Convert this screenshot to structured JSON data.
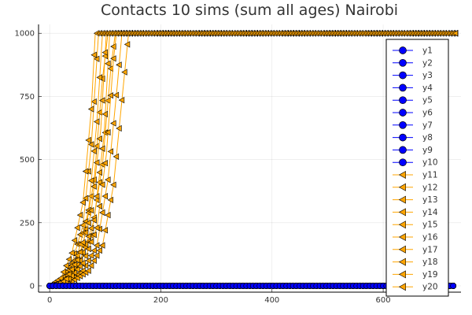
{
  "chart_data": {
    "type": "line",
    "title": "Contacts 10 sims (sum all ages) Nairobi",
    "xlabel": "",
    "ylabel": "",
    "xlim": [
      -20,
      740
    ],
    "ylim": [
      -25,
      1035
    ],
    "x_ticks": [
      "0",
      "200",
      "400",
      "600"
    ],
    "y_ticks": [
      "0",
      "250",
      "500",
      "750",
      "1000"
    ],
    "grid": true,
    "legend_position": "right",
    "series_colors": {
      "circle_series": "#0000ff",
      "triangle_series": "#ffa500"
    },
    "series": [
      {
        "name": "y1",
        "marker": "circle",
        "description": "flat at 0",
        "values": [
          [
            0,
            0
          ],
          [
            730,
            0
          ]
        ]
      },
      {
        "name": "y2",
        "marker": "circle",
        "values": [
          [
            0,
            0
          ],
          [
            730,
            0
          ]
        ]
      },
      {
        "name": "y3",
        "marker": "circle",
        "values": [
          [
            0,
            0
          ],
          [
            730,
            0
          ]
        ]
      },
      {
        "name": "y4",
        "marker": "circle",
        "values": [
          [
            0,
            0
          ],
          [
            730,
            0
          ]
        ]
      },
      {
        "name": "y5",
        "marker": "circle",
        "values": [
          [
            0,
            0
          ],
          [
            730,
            0
          ]
        ]
      },
      {
        "name": "y6",
        "marker": "circle",
        "values": [
          [
            0,
            0
          ],
          [
            730,
            0
          ]
        ]
      },
      {
        "name": "y7",
        "marker": "circle",
        "values": [
          [
            0,
            0
          ],
          [
            730,
            0
          ]
        ]
      },
      {
        "name": "y8",
        "marker": "circle",
        "values": [
          [
            0,
            0
          ],
          [
            730,
            0
          ]
        ]
      },
      {
        "name": "y9",
        "marker": "circle",
        "values": [
          [
            0,
            0
          ],
          [
            730,
            0
          ]
        ]
      },
      {
        "name": "y10",
        "marker": "circle",
        "values": [
          [
            0,
            0
          ],
          [
            730,
            0
          ]
        ]
      },
      {
        "name": "y11",
        "marker": "triangle-left",
        "values": [
          [
            0,
            0
          ],
          [
            20,
            10
          ],
          [
            40,
            60
          ],
          [
            60,
            160
          ],
          [
            80,
            420
          ],
          [
            95,
            820
          ],
          [
            105,
            1000
          ],
          [
            730,
            1000
          ]
        ]
      },
      {
        "name": "y12",
        "marker": "triangle-left",
        "values": [
          [
            0,
            0
          ],
          [
            20,
            20
          ],
          [
            40,
            90
          ],
          [
            60,
            240
          ],
          [
            75,
            560
          ],
          [
            88,
            1000
          ],
          [
            730,
            1000
          ]
        ]
      },
      {
        "name": "y13",
        "marker": "triangle-left",
        "values": [
          [
            0,
            0
          ],
          [
            25,
            15
          ],
          [
            50,
            80
          ],
          [
            75,
            200
          ],
          [
            95,
            480
          ],
          [
            110,
            860
          ],
          [
            118,
            1000
          ],
          [
            730,
            1000
          ]
        ]
      },
      {
        "name": "y14",
        "marker": "triangle-left",
        "values": [
          [
            0,
            0
          ],
          [
            25,
            25
          ],
          [
            50,
            120
          ],
          [
            70,
            300
          ],
          [
            85,
            650
          ],
          [
            95,
            1000
          ],
          [
            730,
            1000
          ]
        ]
      },
      {
        "name": "y15",
        "marker": "triangle-left",
        "values": [
          [
            0,
            0
          ],
          [
            30,
            10
          ],
          [
            60,
            60
          ],
          [
            85,
            160
          ],
          [
            105,
            420
          ],
          [
            122,
            800
          ],
          [
            130,
            1000
          ],
          [
            730,
            1000
          ]
        ]
      },
      {
        "name": "y16",
        "marker": "triangle-left",
        "values": [
          [
            0,
            0
          ],
          [
            30,
            20
          ],
          [
            55,
            100
          ],
          [
            80,
            260
          ],
          [
            98,
            600
          ],
          [
            108,
            1000
          ],
          [
            730,
            1000
          ]
        ]
      },
      {
        "name": "y17",
        "marker": "triangle-left",
        "values": [
          [
            0,
            0
          ],
          [
            35,
            10
          ],
          [
            70,
            60
          ],
          [
            95,
            160
          ],
          [
            115,
            400
          ],
          [
            132,
            780
          ],
          [
            142,
            1000
          ],
          [
            730,
            1000
          ]
        ]
      },
      {
        "name": "y18",
        "marker": "triangle-left",
        "values": [
          [
            0,
            0
          ],
          [
            20,
            30
          ],
          [
            40,
            130
          ],
          [
            60,
            330
          ],
          [
            75,
            700
          ],
          [
            82,
            1000
          ],
          [
            730,
            1000
          ]
        ]
      },
      {
        "name": "y19",
        "marker": "triangle-left",
        "values": [
          [
            0,
            0
          ],
          [
            30,
            15
          ],
          [
            60,
            90
          ],
          [
            85,
            230
          ],
          [
            102,
            520
          ],
          [
            115,
            900
          ],
          [
            120,
            1000
          ],
          [
            730,
            1000
          ]
        ]
      },
      {
        "name": "y20",
        "marker": "triangle-left",
        "values": [
          [
            0,
            0
          ],
          [
            28,
            20
          ],
          [
            52,
            110
          ],
          [
            74,
            280
          ],
          [
            92,
            620
          ],
          [
            102,
            1000
          ],
          [
            730,
            1000
          ]
        ]
      }
    ]
  }
}
